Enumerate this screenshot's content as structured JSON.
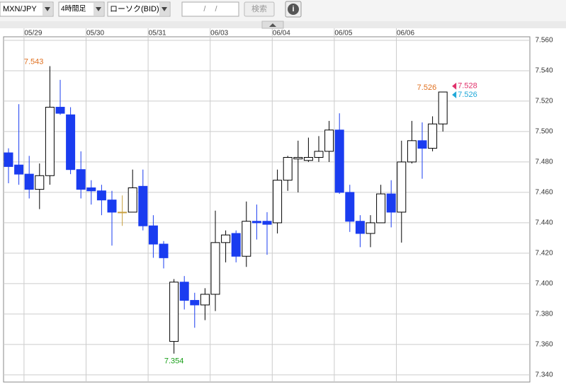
{
  "toolbar": {
    "pair": "MXN/JPY",
    "timeframe": "4時間足",
    "chart_kind": "ローソク(BID)",
    "date_input": "/ /",
    "search_button": "検索",
    "info_button": "i"
  },
  "chart_data": {
    "type": "candlestick",
    "categories": [
      null,
      null,
      "05/29",
      null,
      null,
      null,
      null,
      null,
      "05/30",
      null,
      null,
      null,
      null,
      null,
      "05/31",
      null,
      null,
      null,
      null,
      null,
      "06/03",
      null,
      null,
      null,
      null,
      null,
      "06/04",
      null,
      null,
      null,
      null,
      null,
      "06/05",
      null,
      null,
      null,
      null,
      null,
      "06/06",
      null,
      null,
      null,
      null
    ],
    "series": [
      {
        "open": [
          7.486,
          7.478,
          7.472,
          7.462,
          7.471,
          7.516,
          7.511,
          7.475,
          7.463,
          7.461,
          7.455,
          7.447,
          7.447,
          7.464,
          7.438,
          7.426,
          7.362,
          7.401,
          7.389,
          7.386,
          7.393,
          7.427,
          7.433,
          7.418,
          7.441,
          7.441,
          7.44,
          7.468,
          7.482,
          7.481,
          7.483,
          7.487,
          7.501,
          7.46,
          7.441,
          7.433,
          7.44,
          7.459,
          7.447,
          7.48,
          7.494,
          7.489,
          7.505
        ],
        "high": [
          7.489,
          7.518,
          7.484,
          7.479,
          7.543,
          7.534,
          7.516,
          7.487,
          7.468,
          7.465,
          7.461,
          7.458,
          7.475,
          7.475,
          7.445,
          7.428,
          7.403,
          7.405,
          7.394,
          7.397,
          7.448,
          7.435,
          7.435,
          7.454,
          7.452,
          7.447,
          7.475,
          7.484,
          7.494,
          7.496,
          7.497,
          7.507,
          7.512,
          7.465,
          7.445,
          7.445,
          7.465,
          7.468,
          7.494,
          7.507,
          7.506,
          7.51,
          7.526
        ],
        "low": [
          7.466,
          7.465,
          7.456,
          7.449,
          7.465,
          7.511,
          7.472,
          7.456,
          7.452,
          7.445,
          7.425,
          7.438,
          7.447,
          7.435,
          7.417,
          7.41,
          7.354,
          7.383,
          7.371,
          7.376,
          7.382,
          7.414,
          7.414,
          7.411,
          7.429,
          7.419,
          7.433,
          7.461,
          7.46,
          7.48,
          7.48,
          7.48,
          7.459,
          7.434,
          7.424,
          7.424,
          7.44,
          7.437,
          7.427,
          7.479,
          7.469,
          7.487,
          7.5
        ],
        "close": [
          7.477,
          7.472,
          7.462,
          7.471,
          7.516,
          7.512,
          7.475,
          7.462,
          7.461,
          7.455,
          7.447,
          7.447,
          7.463,
          7.438,
          7.426,
          7.417,
          7.401,
          7.389,
          7.386,
          7.393,
          7.427,
          7.432,
          7.418,
          7.441,
          7.44,
          7.439,
          7.468,
          7.483,
          7.483,
          7.483,
          7.487,
          7.501,
          7.46,
          7.441,
          7.433,
          7.44,
          7.459,
          7.447,
          7.48,
          7.494,
          7.489,
          7.505,
          7.526
        ]
      }
    ],
    "up_color": "#ffffff",
    "down_color": "#1a3cf0",
    "doji_color": "#c8a040",
    "ylim": [
      7.3353,
      7.5623
    ],
    "yticks": [
      {
        "value": 7.34,
        "label": "7.340"
      },
      {
        "value": 7.36,
        "label": "7.360"
      },
      {
        "value": 7.38,
        "label": "7.380"
      },
      {
        "value": 7.4,
        "label": "7.400"
      },
      {
        "value": 7.42,
        "label": "7.420"
      },
      {
        "value": 7.44,
        "label": "7.440"
      },
      {
        "value": 7.46,
        "label": "7.460"
      },
      {
        "value": 7.48,
        "label": "7.480"
      },
      {
        "value": 7.5,
        "label": "7.500"
      },
      {
        "value": 7.52,
        "label": "7.520"
      },
      {
        "value": 7.54,
        "label": "7.540"
      },
      {
        "value": 7.56,
        "label": "7.560"
      }
    ],
    "grid": true,
    "high_labels": [
      7.543,
      7.526
    ],
    "high_label_color": "#e07020",
    "low_labels": [
      7.354
    ],
    "low_label_color": "#1aa01a",
    "ask": 7.528,
    "ask_color": "#e0306a",
    "bid": 7.526,
    "bid_color": "#20a8d8"
  }
}
